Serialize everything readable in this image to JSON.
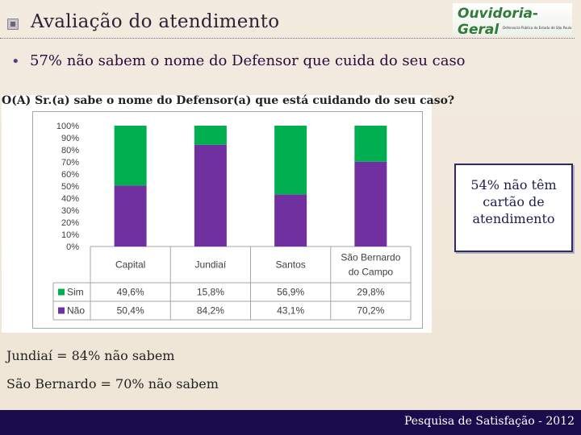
{
  "slide": {
    "title": "Avaliação do atendimento",
    "logo_text": "Ouvidoria-Geral",
    "logo_subtitle": "Defensoria Pública do Estado de São Paulo",
    "bullet": "57% não sabem o nome do Defensor que cuida do seu caso",
    "callout": "54% não têm cartão de atendimento",
    "note1": "Jundiaí = 84% não sabem",
    "note2": "São Bernardo = 70% não sabem",
    "footer": "Pesquisa de Satisfação - 2012"
  },
  "colors": {
    "sim": "#00b050",
    "nao": "#7030a0",
    "footer_bg": "#1a0b4d"
  },
  "chart_data": {
    "type": "bar",
    "stacked": true,
    "title": "O(A) Sr.(a) sabe o nome do Defensor(a) que está cuidando do seu caso?",
    "categories": [
      "Capital",
      "Jundiaí",
      "Santos",
      "São Bernardo do Campo"
    ],
    "category_lines": [
      [
        "Capital"
      ],
      [
        "Jundiaí"
      ],
      [
        "Santos"
      ],
      [
        "São Bernardo",
        "do Campo"
      ]
    ],
    "series": [
      {
        "name": "Sim",
        "values": [
          49.6,
          15.8,
          56.9,
          29.8
        ],
        "labels": [
          "49,6%",
          "15,8%",
          "56,9%",
          "29,8%"
        ],
        "color": "#00b050"
      },
      {
        "name": "Não",
        "values": [
          50.4,
          84.2,
          43.1,
          70.2
        ],
        "labels": [
          "50,4%",
          "84,2%",
          "43,1%",
          "70,2%"
        ],
        "color": "#7030a0"
      }
    ],
    "ylim": [
      0,
      100
    ],
    "yticks": [
      "0%",
      "10%",
      "20%",
      "30%",
      "40%",
      "50%",
      "60%",
      "70%",
      "80%",
      "90%",
      "100%"
    ],
    "grid": false,
    "legend": "data-table-below"
  }
}
